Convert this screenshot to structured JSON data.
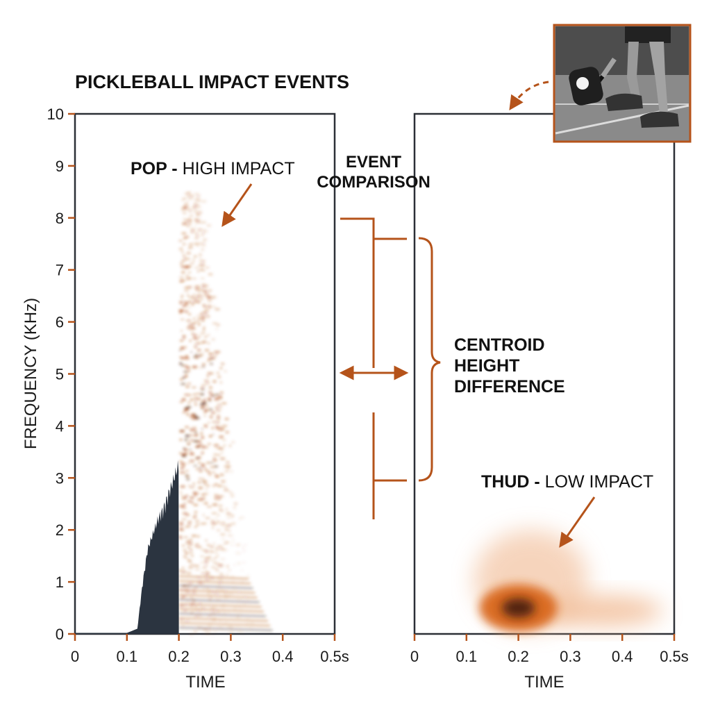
{
  "title": "PICKLEBALL IMPACT EVENTS",
  "colors": {
    "accent": "#b5531a",
    "dark": "#2b3440",
    "axis": "#2b2f36"
  },
  "comparison": {
    "heading_line1": "EVENT",
    "heading_line2": "COMPARISON",
    "brace_line1": "CENTROID",
    "brace_line2": "HEIGHT",
    "brace_line3": "DIFFERENCE"
  },
  "photo": {
    "icon": "pickleball-player-photo"
  },
  "chart_data": [
    {
      "type": "heatmap",
      "title": "",
      "xlabel": "TIME",
      "ylabel": "FREQUENCY (KHz)",
      "xlim": [
        0,
        0.5
      ],
      "ylim": [
        0,
        10
      ],
      "x_ticks": [
        "0",
        "0.1",
        "0.2",
        "0.3",
        "0.4",
        "0.5s"
      ],
      "y_ticks": [
        "0",
        "1",
        "2",
        "3",
        "4",
        "5",
        "6",
        "7",
        "8",
        "9",
        "10"
      ],
      "annotation": {
        "bold": "POP -",
        "text": " HIGH IMPACT"
      },
      "waveform": {
        "t": [
          0.0,
          0.1,
          0.12,
          0.13,
          0.14,
          0.15,
          0.16,
          0.17,
          0.18,
          0.19,
          0.2
        ],
        "amp": [
          0.02,
          0.02,
          0.1,
          1.0,
          1.7,
          2.0,
          2.3,
          2.5,
          2.8,
          3.1,
          3.4
        ]
      },
      "energy": {
        "t_start": 0.2,
        "t_end": 0.5,
        "peak_t": 0.23,
        "peak_freq": 4.2,
        "max_freq": 8.5
      }
    },
    {
      "type": "heatmap",
      "title": "",
      "xlabel": "TIME",
      "ylabel": "",
      "xlim": [
        0,
        0.5
      ],
      "ylim": [
        0,
        10
      ],
      "x_ticks": [
        "0",
        "0.1",
        "0.2",
        "0.3",
        "0.4",
        "0.5s"
      ],
      "annotation": {
        "bold": "THUD -",
        "text": " LOW IMPACT"
      },
      "energy": {
        "peak_t": 0.2,
        "peak_freq": 0.5,
        "t_start": 0.11,
        "t_end": 0.45,
        "max_freq": 1.9
      }
    }
  ]
}
